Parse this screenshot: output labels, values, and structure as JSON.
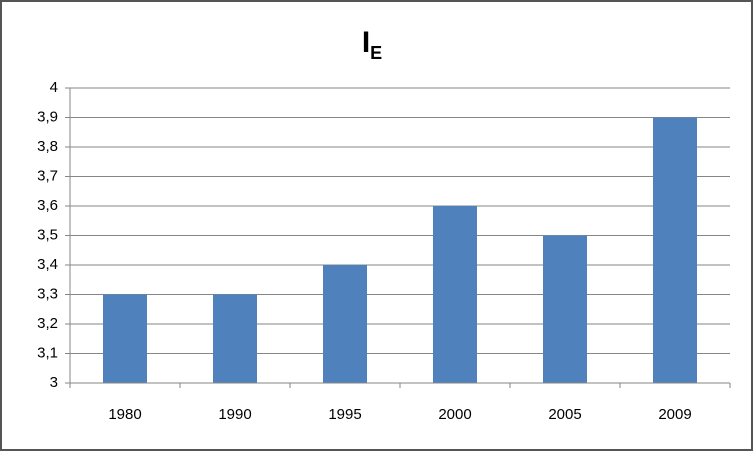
{
  "chart_data": {
    "type": "bar",
    "title": "I",
    "title_subscript": "E",
    "categories": [
      "1980",
      "1990",
      "1995",
      "2000",
      "2005",
      "2009"
    ],
    "values": [
      3.3,
      3.3,
      3.4,
      3.6,
      3.5,
      3.9
    ],
    "color": "#4f81bd",
    "ylim": [
      3,
      4
    ],
    "yticks": [
      3,
      {
        "value": 3.1,
        "label": "3,1"
      },
      {
        "value": 3.2,
        "label": "3,2"
      },
      {
        "value": 3.3,
        "label": "3,3"
      },
      {
        "value": 3.4,
        "label": "3,4"
      },
      {
        "value": 3.5,
        "label": "3,5"
      },
      {
        "value": 3.6,
        "label": "3,6"
      },
      {
        "value": 3.7,
        "label": "3,7"
      },
      {
        "value": 3.8,
        "label": "3,8"
      },
      {
        "value": 3.9,
        "label": "3,9"
      },
      4
    ],
    "grid": true
  }
}
